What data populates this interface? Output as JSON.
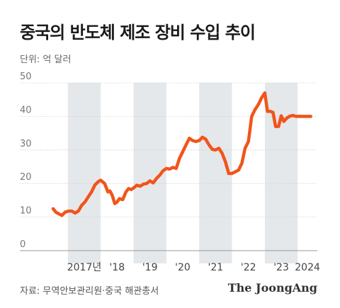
{
  "title": "중국의 반도체 제조 장비 수입 추이",
  "unit_label": "단위: 억 달러",
  "source": "자료: 무역안보관리원·중국 해관총서",
  "brand": "The JoongAng",
  "colors": {
    "line": "#f2541b",
    "band": "#e5e8eb",
    "grid": "#cccccc",
    "text": "#777777"
  },
  "chart_data": {
    "type": "line",
    "ylim": [
      0,
      50
    ],
    "yticks": [
      0,
      10,
      20,
      30,
      40,
      50
    ],
    "xlim": [
      2016.4,
      2024.6
    ],
    "xtick_labels": [
      {
        "x": 2017.5,
        "label": "2017년"
      },
      {
        "x": 2018.5,
        "label": "'18"
      },
      {
        "x": 2019.5,
        "label": "'19"
      },
      {
        "x": 2020.5,
        "label": "'20"
      },
      {
        "x": 2021.5,
        "label": "'21"
      },
      {
        "x": 2022.5,
        "label": "'22"
      },
      {
        "x": 2023.5,
        "label": "'23"
      },
      {
        "x": 2024.3,
        "label": "2024"
      }
    ],
    "shaded_years": [
      [
        2017,
        2018
      ],
      [
        2019,
        2020
      ],
      [
        2021,
        2022
      ],
      [
        2023,
        2024
      ]
    ],
    "grid": true,
    "series": [
      {
        "x": [
          2016.55,
          2016.63,
          2016.72,
          2016.82,
          2016.92,
          2017.02,
          2017.12,
          2017.22,
          2017.32,
          2017.42,
          2017.52,
          2017.62,
          2017.72,
          2017.82,
          2017.92,
          2018.0,
          2018.12,
          2018.22,
          2018.28,
          2018.35,
          2018.43,
          2018.5,
          2018.57,
          2018.67,
          2018.77,
          2018.85,
          2018.93,
          2019.02,
          2019.1,
          2019.2,
          2019.3,
          2019.4,
          2019.5,
          2019.6,
          2019.7,
          2019.8,
          2019.9,
          2020.0,
          2020.1,
          2020.2,
          2020.3,
          2020.4,
          2020.5,
          2020.6,
          2020.7,
          2020.8,
          2020.9,
          2021.0,
          2021.1,
          2021.2,
          2021.3,
          2021.4,
          2021.5,
          2021.6,
          2021.7,
          2021.8,
          2021.9,
          2022.0,
          2022.1,
          2022.2,
          2022.3,
          2022.4,
          2022.5,
          2022.6,
          2022.7,
          2022.8,
          2022.9,
          2023.0,
          2023.08,
          2023.17,
          2023.25,
          2023.33,
          2023.42,
          2023.5,
          2023.58,
          2023.67,
          2023.75,
          2023.85,
          2023.95,
          2024.05,
          2024.12,
          2024.2,
          2024.3,
          2024.4
        ],
        "y": [
          12.5,
          11.5,
          11.0,
          10.5,
          11.5,
          11.8,
          11.8,
          11.2,
          11.8,
          13.5,
          14.5,
          16.0,
          17.5,
          19.5,
          20.5,
          21.0,
          20.0,
          17.5,
          17.8,
          16.5,
          14.0,
          14.5,
          15.5,
          15.2,
          17.5,
          18.5,
          18.2,
          18.8,
          19.5,
          19.2,
          19.8,
          20.0,
          20.8,
          20.2,
          21.5,
          22.5,
          23.8,
          24.5,
          24.3,
          24.8,
          24.5,
          27.5,
          29.5,
          31.5,
          33.5,
          32.8,
          32.5,
          32.8,
          33.8,
          33.2,
          31.5,
          30.2,
          30.0,
          30.5,
          29.0,
          26.5,
          23.0,
          23.0,
          23.5,
          24.0,
          26.0,
          30.5,
          32.5,
          40.0,
          42.0,
          43.5,
          45.5,
          47.0,
          41.5,
          41.5,
          41.2,
          37.0,
          37.0,
          40.2,
          38.5,
          39.5,
          40.0,
          40.3,
          40.0,
          40.0,
          40.0,
          40.0,
          40.0,
          40.0
        ]
      }
    ]
  }
}
